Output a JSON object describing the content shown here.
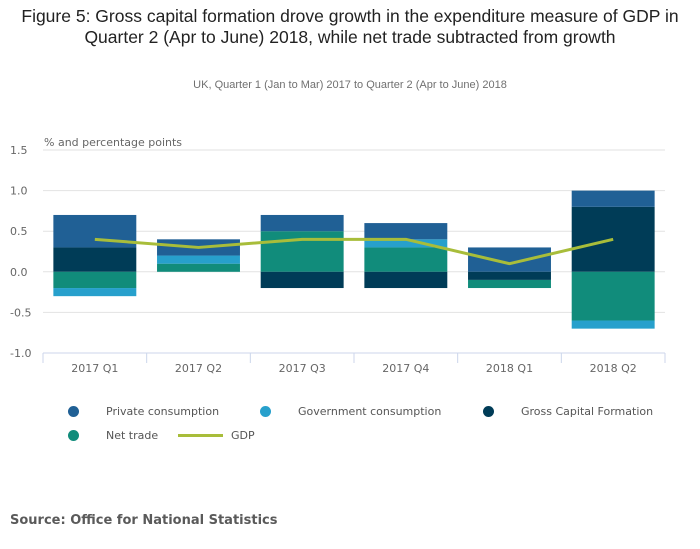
{
  "chart_data": {
    "type": "bar",
    "stacked": true,
    "title": "Figure 5: Gross capital formation drove growth in the expenditure measure of GDP in Quarter 2 (Apr to June) 2018, while net trade subtracted from growth",
    "subtitle": "UK, Quarter 1 (Jan to Mar) 2017 to Quarter 2 (Apr to June) 2018",
    "ylabel": "% and percentage points",
    "xlabel": "",
    "ylim": [
      -1.0,
      1.5
    ],
    "yticks": [
      "1.5",
      "1.0",
      "0.5",
      "0.0",
      "-0.5",
      "-1.0"
    ],
    "ytick_values": [
      1.5,
      1.0,
      0.5,
      0.0,
      -0.5,
      -1.0
    ],
    "grid": true,
    "legend_position": "bottom",
    "categories": [
      "2017 Q1",
      "2017 Q2",
      "2017 Q3",
      "2017 Q4",
      "2018 Q1",
      "2018 Q2"
    ],
    "series": [
      {
        "name": "Private consumption",
        "type": "bar",
        "color": "#206095",
        "values": [
          0.4,
          0.2,
          0.2,
          0.2,
          0.3,
          0.2
        ]
      },
      {
        "name": "Government consumption",
        "type": "bar",
        "color": "#27a0cc",
        "values": [
          -0.1,
          0.1,
          0.0,
          0.1,
          0.0,
          -0.1
        ]
      },
      {
        "name": "Gross Capital Formation",
        "type": "bar",
        "color": "#003c57",
        "values": [
          0.3,
          0.0,
          -0.2,
          -0.2,
          -0.1,
          0.8
        ]
      },
      {
        "name": "Net trade",
        "type": "bar",
        "color": "#118c7b",
        "values": [
          -0.2,
          0.1,
          0.5,
          0.3,
          -0.1,
          -0.6
        ]
      },
      {
        "name": "GDP",
        "type": "line",
        "color": "#a8bd3a",
        "values": [
          0.4,
          0.3,
          0.4,
          0.4,
          0.1,
          0.4
        ]
      }
    ]
  },
  "source": "Source: Office for National Statistics"
}
